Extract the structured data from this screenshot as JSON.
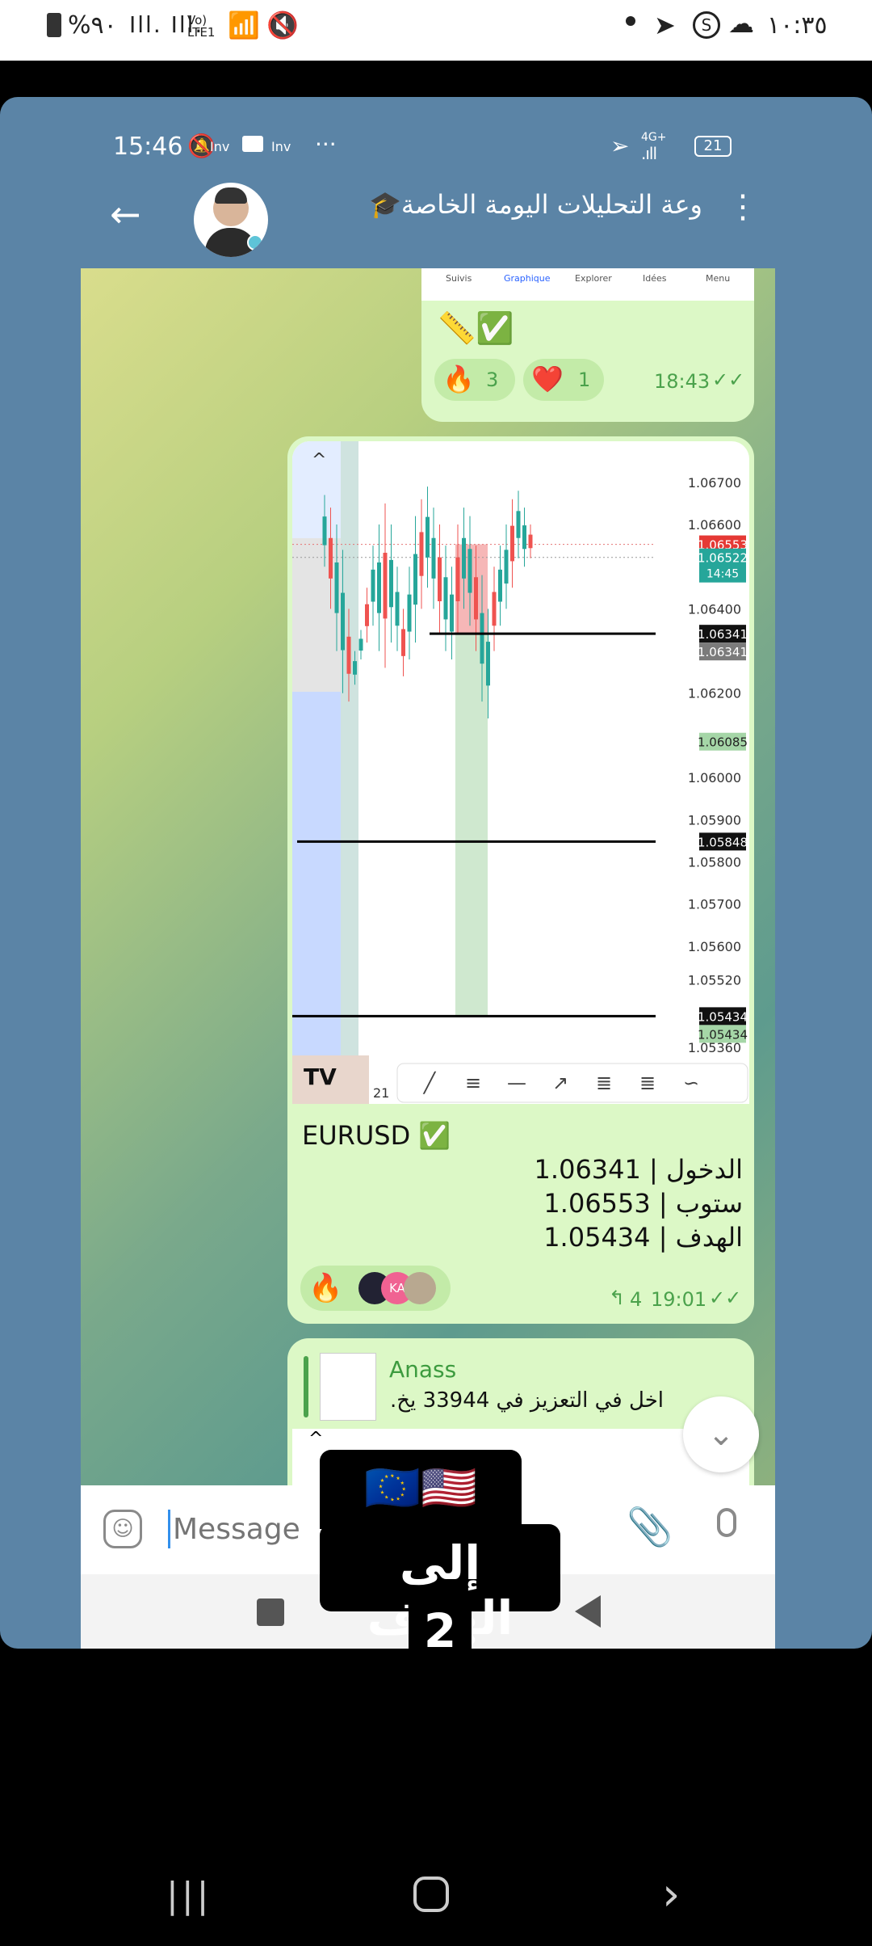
{
  "status_bar": {
    "battery": "%٩٠",
    "network": "Vo) LTE1",
    "clock": "١٠:٣٥"
  },
  "inner_status": {
    "time": "15:46",
    "apps": "Inv",
    "apps2": "Inv",
    "dots": "···",
    "network": "4G+",
    "battery": "21"
  },
  "header": {
    "title": "وعة التحليلات اليومة الخاصة🎓"
  },
  "msg1": {
    "tabs": [
      "Suivis",
      "Graphique",
      "Explorer",
      "Idées",
      "Menu"
    ],
    "emoji_line": "📏✅",
    "reactions": [
      {
        "emoji": "🔥",
        "count": "3"
      },
      {
        "emoji": "❤️",
        "count": "1"
      }
    ],
    "time": "18:43"
  },
  "chart_data": {
    "type": "candlestick",
    "symbol": "EURUSD",
    "y_ticks": [
      "1.06700",
      "1.06600",
      "1.06400",
      "1.06200",
      "1.06000",
      "1.05900",
      "1.05800",
      "1.05700",
      "1.05600",
      "1.05520",
      "1.05360"
    ],
    "ylim": [
      1.0536,
      1.0674
    ],
    "price_tags": [
      {
        "value": "1.06553",
        "color": "#e53935"
      },
      {
        "value": "1.06522",
        "color": "#26a69a",
        "sub": "14:45"
      },
      {
        "value": "1.06341",
        "color": "#111111"
      },
      {
        "value": "1.06341",
        "color": "#7b7b7b"
      },
      {
        "value": "1.06085",
        "color": "#a5d6a7"
      },
      {
        "value": "1.05848",
        "color": "#111111"
      },
      {
        "value": "1.05434",
        "color": "#111111"
      },
      {
        "value": "1.05434",
        "color": "#a5d6a7"
      }
    ],
    "levels": {
      "entry": 1.06341,
      "stop": 1.06553,
      "target": 1.05434,
      "line2": 1.05848
    },
    "x_label": "21"
  },
  "msg2": {
    "title": "EURUSD ✅",
    "line1": "الدخول | 1.06341",
    "line2": "ستوب | 1.06553",
    "line3": "الهدف | 1.05434",
    "reaction": "🔥",
    "avatar_initials": "KA",
    "forwards": "4",
    "time": "19:01"
  },
  "msg3": {
    "author": "Anass",
    "preview": "اخل في التعزيز في 33944 يخ..."
  },
  "composer": {
    "placeholder": "Message"
  },
  "overlay": {
    "flags": "🇪🇺🇺🇸",
    "line1": "إلى الهدف",
    "line2": "2"
  }
}
